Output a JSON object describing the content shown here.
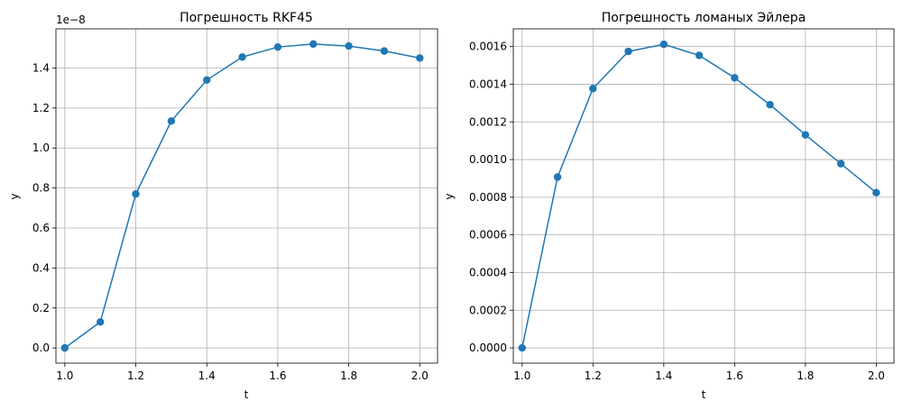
{
  "chart_data": [
    {
      "type": "line",
      "title": "Погрешность RKF45",
      "xlabel": "t",
      "ylabel": "y",
      "offset_text": "1e−8",
      "xlim": [
        0.975,
        2.05
      ],
      "ylim": [
        -0.076,
        1.596
      ],
      "grid": true,
      "marker": "circle",
      "color": "#1f77b4",
      "x_ticks": [
        {
          "value": 1.0,
          "label": "1.0"
        },
        {
          "value": 1.2,
          "label": "1.2"
        },
        {
          "value": 1.4,
          "label": "1.4"
        },
        {
          "value": 1.6,
          "label": "1.6"
        },
        {
          "value": 1.8,
          "label": "1.8"
        },
        {
          "value": 2.0,
          "label": "2.0"
        }
      ],
      "y_ticks": [
        {
          "value": 0.0,
          "label": "0.0"
        },
        {
          "value": 0.2,
          "label": "0.2"
        },
        {
          "value": 0.4,
          "label": "0.4"
        },
        {
          "value": 0.6,
          "label": "0.6"
        },
        {
          "value": 0.8,
          "label": "0.8"
        },
        {
          "value": 1.0,
          "label": "1.0"
        },
        {
          "value": 1.2,
          "label": "1.2"
        },
        {
          "value": 1.4,
          "label": "1.4"
        }
      ],
      "series": [
        {
          "x": [
            1.0,
            1.1,
            1.2,
            1.3,
            1.4,
            1.5,
            1.6,
            1.7,
            1.8,
            1.9,
            2.0
          ],
          "y": [
            0.0,
            0.13,
            0.77,
            1.135,
            1.34,
            1.455,
            1.505,
            1.52,
            1.51,
            1.485,
            1.45
          ]
        }
      ]
    },
    {
      "type": "line",
      "title": "Погрешность ломаных Эйлера",
      "xlabel": "t",
      "ylabel": "y",
      "xlim": [
        0.975,
        2.05
      ],
      "ylim": [
        -8.1e-05,
        0.001694
      ],
      "grid": true,
      "marker": "circle",
      "color": "#1f77b4",
      "x_ticks": [
        {
          "value": 1.0,
          "label": "1.0"
        },
        {
          "value": 1.2,
          "label": "1.2"
        },
        {
          "value": 1.4,
          "label": "1.4"
        },
        {
          "value": 1.6,
          "label": "1.6"
        },
        {
          "value": 1.8,
          "label": "1.8"
        },
        {
          "value": 2.0,
          "label": "2.0"
        }
      ],
      "y_ticks": [
        {
          "value": 0.0,
          "label": "0.0000"
        },
        {
          "value": 0.0002,
          "label": "0.0002"
        },
        {
          "value": 0.0004,
          "label": "0.0004"
        },
        {
          "value": 0.0006,
          "label": "0.0006"
        },
        {
          "value": 0.0008,
          "label": "0.0008"
        },
        {
          "value": 0.001,
          "label": "0.0010"
        },
        {
          "value": 0.0012,
          "label": "0.0012"
        },
        {
          "value": 0.0014,
          "label": "0.0014"
        },
        {
          "value": 0.0016,
          "label": "0.0016"
        }
      ],
      "series": [
        {
          "x": [
            1.0,
            1.1,
            1.2,
            1.3,
            1.4,
            1.5,
            1.6,
            1.7,
            1.8,
            1.9,
            2.0
          ],
          "y": [
            0.0,
            0.000907,
            0.001377,
            0.001574,
            0.001612,
            0.001553,
            0.001434,
            0.001291,
            0.001131,
            0.000978,
            0.000824
          ]
        }
      ]
    }
  ]
}
